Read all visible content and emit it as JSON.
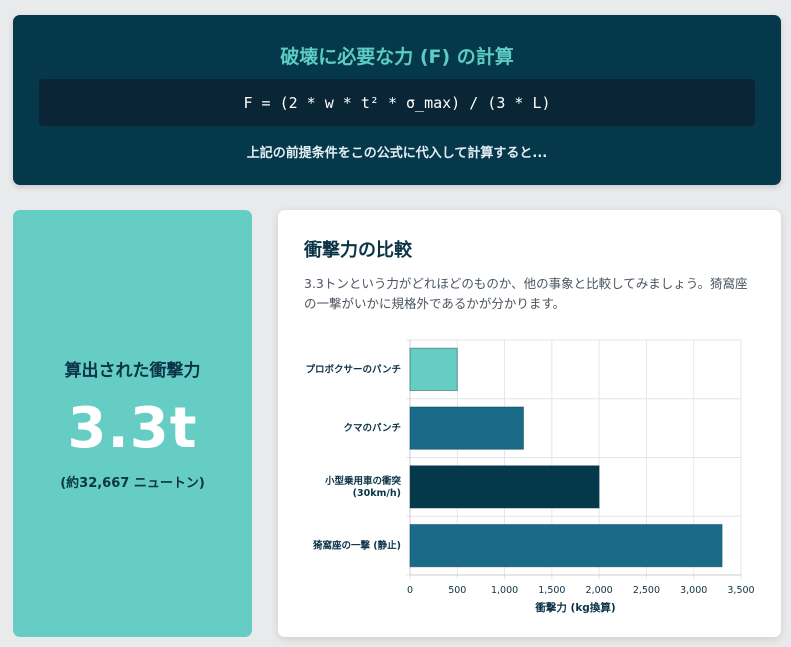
{
  "formula": {
    "title": "破壊に必要な力 (F) の計算",
    "expression": "F = (2 * w * t² * σ_max) / (3 * L)",
    "note": "上記の前提条件をこの公式に代入して計算すると..."
  },
  "result": {
    "label": "算出された衝撃力",
    "value": "3.3t",
    "sub": "(約32,667 ニュートン)"
  },
  "comparison": {
    "title": "衝撃力の比較",
    "description": "3.3トンという力がどれほどのものか、他の事象と比較してみましょう。猗窩座の一撃がいかに規格外であるかが分かります。"
  },
  "chart_data": {
    "type": "bar",
    "orientation": "horizontal",
    "categories": [
      "プロボクサーのパンチ",
      "クマのパンチ",
      "小型乗用車の衝突|(30km/h)",
      "猗窩座の一撃 (静止)"
    ],
    "values": [
      500,
      1200,
      2000,
      3300
    ],
    "colors": [
      "#66cdc5",
      "#1a6b88",
      "#06384b",
      "#1a6b88"
    ],
    "xlabel": "衝撃力 (kg換算)",
    "xlim": [
      0,
      3500
    ],
    "ticks": [
      0,
      500,
      1000,
      1500,
      2000,
      2500,
      3000,
      3500
    ],
    "tick_labels": [
      "0",
      "500",
      "1,000",
      "1,500",
      "2,000",
      "2,500",
      "3,000",
      "3,500"
    ],
    "grid": true
  }
}
